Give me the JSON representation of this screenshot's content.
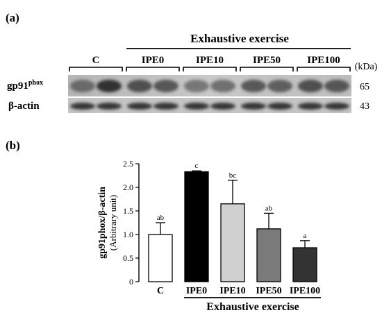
{
  "panel_a": {
    "label": "(a)",
    "group_label": "Exhaustive exercise",
    "lane_groups": [
      "C",
      "IPE0",
      "IPE10",
      "IPE50",
      "IPE100"
    ],
    "unit_label": "(kDa)",
    "bands": [
      {
        "protein": "gp91",
        "superscript": "phox",
        "kda": "65"
      },
      {
        "protein": "β-actin",
        "superscript": "",
        "kda": "43"
      }
    ]
  },
  "panel_b": {
    "label": "(b)",
    "group_label": "Exhaustive exercise"
  },
  "chart_data": {
    "type": "bar",
    "categories": [
      "C",
      "IPE0",
      "IPE10",
      "IPE50",
      "IPE100"
    ],
    "values": [
      1.0,
      2.33,
      1.65,
      1.12,
      0.72
    ],
    "errors": [
      0.25,
      0.02,
      0.5,
      0.33,
      0.15
    ],
    "significance_letters": [
      "ab",
      "c",
      "bc",
      "ab",
      "a"
    ],
    "bar_colors": [
      "#ffffff",
      "#000000",
      "#d0d0d0",
      "#7a7a7a",
      "#333333"
    ],
    "title": "",
    "xlabel": "",
    "ylabel": "gp91phox/β-actin",
    "ylabel_sub": "(Arbitrary unit)",
    "ylim": [
      0,
      2.5
    ],
    "yticks": [
      "0",
      "0.5",
      "1.0",
      "1.5",
      "2.0",
      "2.5"
    ],
    "grid": false
  }
}
